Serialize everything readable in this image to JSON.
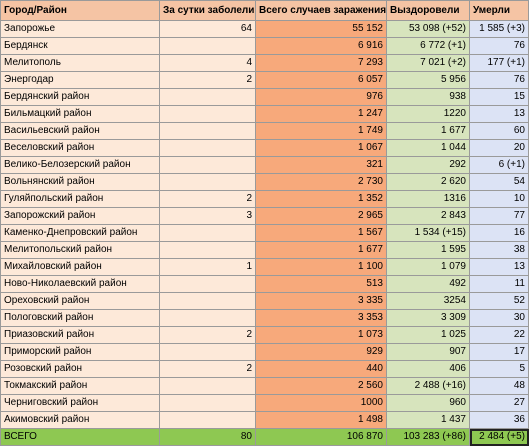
{
  "table": {
    "headers": [
      "Город/Район",
      "За сутки заболели",
      "Всего случаев заражения",
      "Выздоровели",
      "Умерли"
    ],
    "rows": [
      {
        "name": "Запорожье",
        "daily": "64",
        "total": "55 152",
        "recovered": "53 098 (+52)",
        "died": "1 585 (+3)",
        "big": true
      },
      {
        "name": "Бердянск",
        "daily": "",
        "total": "6 916",
        "recovered": "6 772 (+1)",
        "died": "76",
        "big": false
      },
      {
        "name": "Мелитополь",
        "daily": "4",
        "total": "7 293",
        "recovered": "7 021 (+2)",
        "died": "177 (+1)",
        "big": true
      },
      {
        "name": "Энергодар",
        "daily": "2",
        "total": "6 057",
        "recovered": "5 956",
        "died": "76",
        "big": false
      },
      {
        "name": "Бердянский район",
        "daily": "",
        "total": "976",
        "recovered": "938",
        "died": "15",
        "big": false
      },
      {
        "name": "Бильмацкий район",
        "daily": "",
        "total": "1 247",
        "recovered": "1220",
        "died": "13",
        "big": false
      },
      {
        "name": "Васильевский район",
        "daily": "",
        "total": "1 749",
        "recovered": "1 677",
        "died": "60",
        "big": true
      },
      {
        "name": "Веселовский район",
        "daily": "",
        "total": "1 067",
        "recovered": "1 044",
        "died": "20",
        "big": false
      },
      {
        "name": "Велико-Белозерский район",
        "daily": "",
        "total": "321",
        "recovered": "292",
        "died": "6 (+1)",
        "big": true
      },
      {
        "name": "Вольнянский район",
        "daily": "",
        "total": "2 730",
        "recovered": "2 620",
        "died": "54",
        "big": false
      },
      {
        "name": "Гуляйпольский район",
        "daily": "2",
        "total": "1 352",
        "recovered": "1316",
        "died": "10",
        "big": true
      },
      {
        "name": "Запорожский район",
        "daily": "3",
        "total": "2 965",
        "recovered": "2 843",
        "died": "77",
        "big": false
      },
      {
        "name": "Каменко-Днепровский район",
        "daily": "",
        "total": "1 567",
        "recovered": "1 534 (+15)",
        "died": "16",
        "big": true
      },
      {
        "name": "Мелитопольский район",
        "daily": "",
        "total": "1 677",
        "recovered": "1 595",
        "died": "38",
        "big": false
      },
      {
        "name": "Михайловский район",
        "daily": "1",
        "total": "1 100",
        "recovered": "1 079",
        "died": "13",
        "big": true
      },
      {
        "name": "Ново-Николаевский район",
        "daily": "",
        "total": "513",
        "recovered": "492",
        "died": "11",
        "big": false
      },
      {
        "name": "Ореховский район",
        "daily": "",
        "total": "3 335",
        "recovered": "3254",
        "died": "52",
        "big": true
      },
      {
        "name": "Пологовский район",
        "daily": "",
        "total": "3 353",
        "recovered": "3 309",
        "died": "30",
        "big": false
      },
      {
        "name": "Приазовский район",
        "daily": "2",
        "total": "1 073",
        "recovered": "1 025",
        "died": "22",
        "big": true
      },
      {
        "name": "Приморский район",
        "daily": "",
        "total": "929",
        "recovered": "907",
        "died": "17",
        "big": false
      },
      {
        "name": "Розовский район",
        "daily": "2",
        "total": "440",
        "recovered": "406",
        "died": "5",
        "big": true
      },
      {
        "name": "Токмакский район",
        "daily": "",
        "total": "2 560",
        "recovered": "2 488 (+16)",
        "died": "48",
        "big": false
      },
      {
        "name": "Черниговский район",
        "daily": "",
        "total": "1000",
        "recovered": "960",
        "died": "27",
        "big": true
      },
      {
        "name": "Акимовский район",
        "daily": "",
        "total": "1 498",
        "recovered": "1 437",
        "died": "36",
        "big": false
      }
    ],
    "total_row": {
      "name": "ВСЕГО",
      "daily": "80",
      "total": "106 870",
      "recovered": "103 283 (+86)",
      "died": "2 484 (+5)"
    }
  },
  "colors": {
    "header": "#f5c4a4",
    "name_col": "#fde9d9",
    "total_col": "#f7a97b",
    "recovered_col": "#d7e4bd",
    "died_col": "#dce3f5",
    "total_row": "#8ec852"
  }
}
